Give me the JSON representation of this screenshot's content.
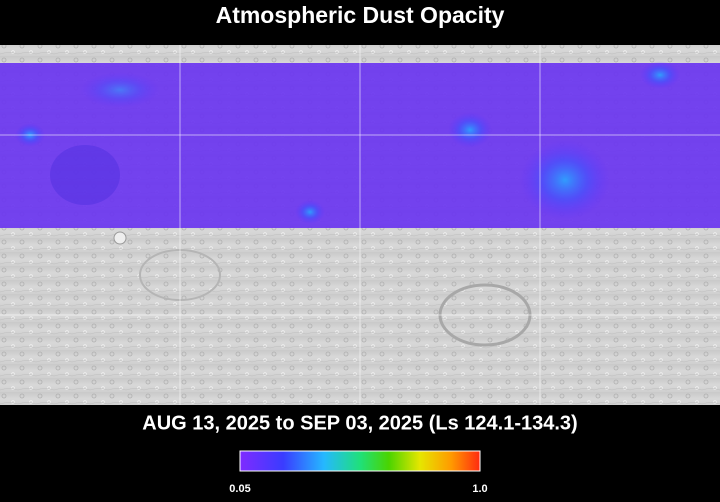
{
  "header": {
    "title": "Atmospheric Dust Opacity"
  },
  "map": {
    "date_range": "AUG 13, 2025 to SEP 03, 2025 (Ls 124.1-134.3)"
  },
  "colorbar": {
    "min_label": "0.05",
    "max_label": "1.0"
  }
}
